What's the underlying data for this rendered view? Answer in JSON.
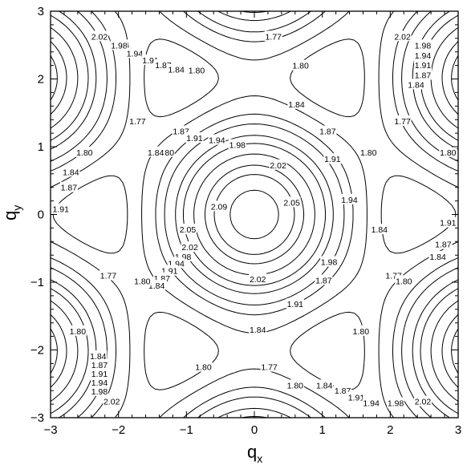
{
  "chart_data": {
    "type": "contour",
    "xlabel": "q",
    "xlabel_sub": "x",
    "ylabel": "q",
    "ylabel_sub": "y",
    "xlim": [
      -3,
      3
    ],
    "ylim": [
      -3,
      3
    ],
    "xticks": [
      "−3",
      "−2",
      "−1",
      "0",
      "1",
      "2",
      "3"
    ],
    "yticks": [
      "−3",
      "−2",
      "−1",
      "0",
      "1",
      "2",
      "3"
    ],
    "grid": false,
    "levels": [
      1.77,
      1.8,
      1.84,
      1.87,
      1.91,
      1.94,
      1.98,
      2.02,
      2.05,
      2.09
    ],
    "contour_labels": [
      {
        "text": "2.02",
        "x": -2.28,
        "y": 2.63
      },
      {
        "text": "1.98",
        "x": -1.99,
        "y": 2.5
      },
      {
        "text": "1.94",
        "x": -1.76,
        "y": 2.38
      },
      {
        "text": "1.91",
        "x": -1.53,
        "y": 2.28
      },
      {
        "text": "1.87",
        "x": -1.34,
        "y": 2.21
      },
      {
        "text": "1.84",
        "x": -1.15,
        "y": 2.14
      },
      {
        "text": "1.80",
        "x": -0.85,
        "y": 2.13
      },
      {
        "text": "1.77",
        "x": 0.28,
        "y": 2.63
      },
      {
        "text": "1.80",
        "x": 0.68,
        "y": 2.2
      },
      {
        "text": "2.02",
        "x": 2.18,
        "y": 2.63
      },
      {
        "text": "1.98",
        "x": 2.48,
        "y": 2.5
      },
      {
        "text": "1.94",
        "x": 2.48,
        "y": 2.35
      },
      {
        "text": "1.91",
        "x": 2.48,
        "y": 2.21
      },
      {
        "text": "1.87",
        "x": 2.48,
        "y": 2.06
      },
      {
        "text": "1.84",
        "x": 2.38,
        "y": 1.92
      },
      {
        "text": "1.84",
        "x": 0.62,
        "y": 1.63
      },
      {
        "text": "1.77",
        "x": -1.72,
        "y": 1.38
      },
      {
        "text": "1.77",
        "x": 2.18,
        "y": 1.38
      },
      {
        "text": "1.87",
        "x": -1.08,
        "y": 1.23
      },
      {
        "text": "1.91",
        "x": -0.88,
        "y": 1.13
      },
      {
        "text": "1.94",
        "x": -0.55,
        "y": 1.1
      },
      {
        "text": "1.98",
        "x": -0.25,
        "y": 1.03
      },
      {
        "text": "1.87",
        "x": 1.08,
        "y": 1.23
      },
      {
        "text": "1.80",
        "x": -2.5,
        "y": 0.92
      },
      {
        "text": "1.80",
        "x": -1.3,
        "y": 0.92
      },
      {
        "text": "1.84",
        "x": -1.45,
        "y": 0.92
      },
      {
        "text": "1.80",
        "x": 1.68,
        "y": 0.92
      },
      {
        "text": "1.80",
        "x": 2.85,
        "y": 0.92
      },
      {
        "text": "2.02",
        "x": 0.35,
        "y": 0.73
      },
      {
        "text": "1.91",
        "x": 1.15,
        "y": 0.82
      },
      {
        "text": "1.84",
        "x": -2.7,
        "y": 0.63
      },
      {
        "text": "1.87",
        "x": -2.73,
        "y": 0.4
      },
      {
        "text": "2.09",
        "x": -0.52,
        "y": 0.12
      },
      {
        "text": "2.05",
        "x": 0.55,
        "y": 0.18
      },
      {
        "text": "1.94",
        "x": 1.4,
        "y": 0.22
      },
      {
        "text": "1.91",
        "x": -2.85,
        "y": 0.08
      },
      {
        "text": "1.84",
        "x": 1.84,
        "y": -0.22
      },
      {
        "text": "1.91",
        "x": 2.85,
        "y": -0.12
      },
      {
        "text": "2.05",
        "x": -0.98,
        "y": -0.22
      },
      {
        "text": "1.87",
        "x": 2.78,
        "y": -0.44
      },
      {
        "text": "2.02",
        "x": -0.95,
        "y": -0.48
      },
      {
        "text": "1.98",
        "x": 1.1,
        "y": -0.7
      },
      {
        "text": "1.98",
        "x": -1.05,
        "y": -0.62
      },
      {
        "text": "1.84",
        "x": 2.7,
        "y": -0.62
      },
      {
        "text": "1.94",
        "x": -1.15,
        "y": -0.72
      },
      {
        "text": "1.91",
        "x": -1.25,
        "y": -0.83
      },
      {
        "text": "1.87",
        "x": -1.36,
        "y": -0.94
      },
      {
        "text": "1.84",
        "x": -1.44,
        "y": -1.05
      },
      {
        "text": "1.87",
        "x": 1.02,
        "y": -0.97
      },
      {
        "text": "1.77",
        "x": -2.15,
        "y": -0.9
      },
      {
        "text": "1.80",
        "x": -1.65,
        "y": -0.98
      },
      {
        "text": "1.77",
        "x": 2.05,
        "y": -0.9
      },
      {
        "text": "1.80",
        "x": 2.2,
        "y": -0.98
      },
      {
        "text": "2.02",
        "x": 0.05,
        "y": -0.95
      },
      {
        "text": "1.91",
        "x": 0.6,
        "y": -1.32
      },
      {
        "text": "1.84",
        "x": 0.05,
        "y": -1.7
      },
      {
        "text": "1.80",
        "x": -2.6,
        "y": -1.72
      },
      {
        "text": "1.80",
        "x": 1.57,
        "y": -1.72
      },
      {
        "text": "1.84",
        "x": -2.3,
        "y": -2.09
      },
      {
        "text": "1.80",
        "x": -0.75,
        "y": -2.25
      },
      {
        "text": "1.77",
        "x": 0.22,
        "y": -2.25
      },
      {
        "text": "1.80",
        "x": 0.6,
        "y": -2.52
      },
      {
        "text": "1.87",
        "x": -2.28,
        "y": -2.22
      },
      {
        "text": "1.84",
        "x": 1.03,
        "y": -2.52
      },
      {
        "text": "1.91",
        "x": -2.28,
        "y": -2.35
      },
      {
        "text": "1.87",
        "x": 1.3,
        "y": -2.6
      },
      {
        "text": "1.94",
        "x": -2.28,
        "y": -2.48
      },
      {
        "text": "1.91",
        "x": 1.5,
        "y": -2.7
      },
      {
        "text": "1.98",
        "x": -2.28,
        "y": -2.61
      },
      {
        "text": "1.94",
        "x": 1.72,
        "y": -2.78
      },
      {
        "text": "2.02",
        "x": -2.1,
        "y": -2.76
      },
      {
        "text": "1.98",
        "x": 2.08,
        "y": -2.78
      },
      {
        "text": "2.02",
        "x": 2.48,
        "y": -2.76
      }
    ]
  }
}
